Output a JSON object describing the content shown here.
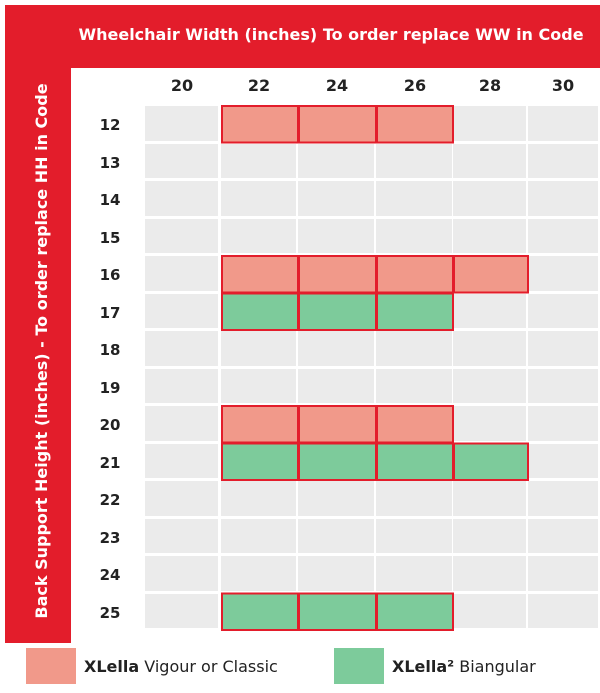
{
  "chart_data": {
    "type": "table",
    "column_header": "Wheelchair Width (inches)  To order replace WW in Code",
    "row_header": "Back Support  Height (inches) - To order replace HH in Code",
    "columns": [
      "20",
      "22",
      "24",
      "26",
      "28",
      "30"
    ],
    "rows": [
      "12",
      "13",
      "14",
      "15",
      "16",
      "17",
      "18",
      "19",
      "20",
      "21",
      "22",
      "23",
      "24",
      "25"
    ],
    "series": [
      {
        "name_bold": "XLella",
        "name_rest": " Vigour or Classic",
        "color": "#f1998a",
        "cells": [
          {
            "row": "12",
            "width": "22"
          },
          {
            "row": "12",
            "width": "24"
          },
          {
            "row": "12",
            "width": "26"
          },
          {
            "row": "16",
            "width": "22"
          },
          {
            "row": "16",
            "width": "24"
          },
          {
            "row": "16",
            "width": "26"
          },
          {
            "row": "16",
            "width": "28"
          },
          {
            "row": "20",
            "width": "22"
          },
          {
            "row": "20",
            "width": "24"
          },
          {
            "row": "20",
            "width": "26"
          }
        ]
      },
      {
        "name_bold": "XLella²",
        "name_rest": " Biangular",
        "color": "#7dcb9b",
        "cells": [
          {
            "row": "17",
            "width": "22"
          },
          {
            "row": "17",
            "width": "24"
          },
          {
            "row": "17",
            "width": "26"
          },
          {
            "row": "21",
            "width": "22"
          },
          {
            "row": "21",
            "width": "24"
          },
          {
            "row": "21",
            "width": "26"
          },
          {
            "row": "21",
            "width": "28"
          },
          {
            "row": "25",
            "width": "22"
          },
          {
            "row": "25",
            "width": "24"
          },
          {
            "row": "25",
            "width": "26"
          }
        ]
      }
    ],
    "outline_color": "#e31d2b",
    "frame_color": "#e31d2b",
    "cell_background": "#ebebeb"
  }
}
